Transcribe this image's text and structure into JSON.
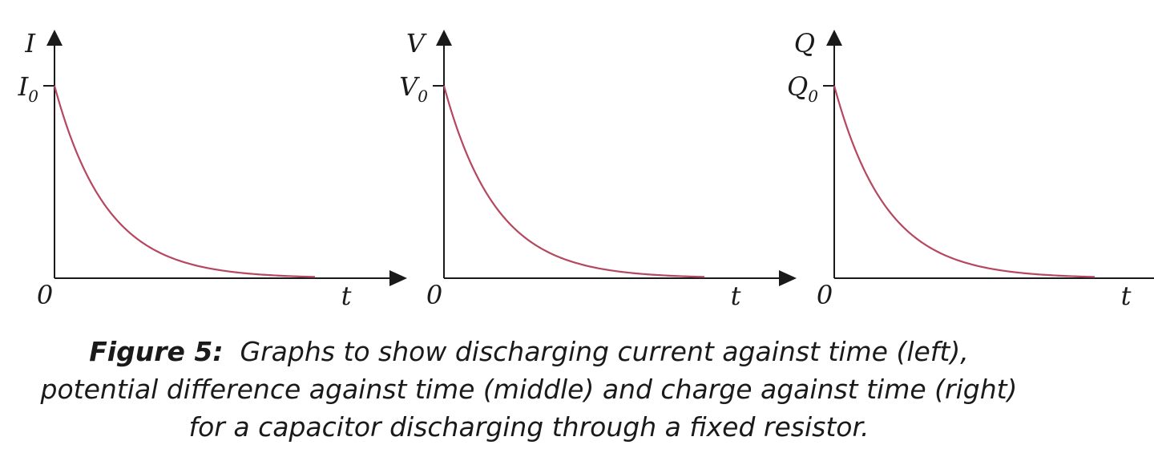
{
  "colors": {
    "curve": "#b5475f",
    "axis": "#1a1a1a",
    "text": "#1a1a1a"
  },
  "chart_data": [
    {
      "type": "line",
      "curve_shape": "exponential decay",
      "ylabel": "I",
      "xlabel": "t",
      "y0_label": "I",
      "y0_subscript": "0",
      "origin_label": "0",
      "ylim": [
        0,
        1.14
      ],
      "x": [
        0,
        0.5,
        1,
        1.5,
        2,
        2.5,
        3,
        3.5,
        4,
        4.5,
        5
      ],
      "y": [
        1,
        0.61,
        0.37,
        0.22,
        0.14,
        0.08,
        0.05,
        0.03,
        0.02,
        0.01,
        0.01
      ]
    },
    {
      "type": "line",
      "curve_shape": "exponential decay",
      "ylabel": "V",
      "xlabel": "t",
      "y0_label": "V",
      "y0_subscript": "0",
      "origin_label": "0",
      "ylim": [
        0,
        1.14
      ],
      "x": [
        0,
        0.5,
        1,
        1.5,
        2,
        2.5,
        3,
        3.5,
        4,
        4.5,
        5
      ],
      "y": [
        1,
        0.61,
        0.37,
        0.22,
        0.14,
        0.08,
        0.05,
        0.03,
        0.02,
        0.01,
        0.01
      ]
    },
    {
      "type": "line",
      "curve_shape": "exponential decay",
      "ylabel": "Q",
      "xlabel": "t",
      "y0_label": "Q",
      "y0_subscript": "0",
      "origin_label": "0",
      "ylim": [
        0,
        1.14
      ],
      "x": [
        0,
        0.5,
        1,
        1.5,
        2,
        2.5,
        3,
        3.5,
        4,
        4.5,
        5
      ],
      "y": [
        1,
        0.61,
        0.37,
        0.22,
        0.14,
        0.08,
        0.05,
        0.03,
        0.02,
        0.01,
        0.01
      ]
    }
  ],
  "caption": {
    "label": "Figure 5:",
    "line1": "Graphs to show discharging current against time (left),",
    "line2": "potential difference against time (middle) and charge against time (right)",
    "line3": "for a capacitor discharging through a fixed resistor."
  }
}
